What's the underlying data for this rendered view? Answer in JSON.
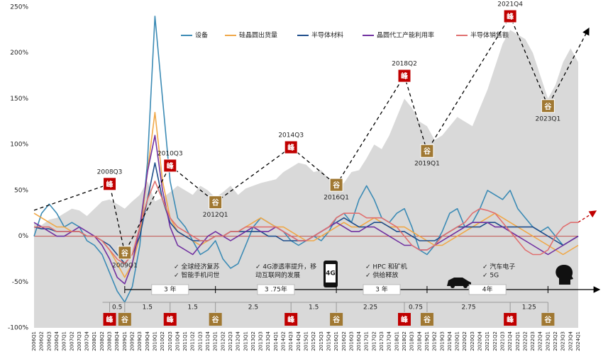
{
  "chart_data": {
    "type": "line",
    "categories": [
      "2006Q1",
      "2006Q2",
      "2006Q3",
      "2006Q4",
      "2007Q1",
      "2007Q2",
      "2007Q3",
      "2007Q4",
      "2008Q1",
      "2008Q2",
      "2008Q3",
      "2008Q4",
      "2009Q1",
      "2009Q2",
      "2009Q3",
      "2009Q4",
      "2010Q1",
      "2010Q2",
      "2010Q3",
      "2010Q4",
      "2011Q1",
      "2011Q2",
      "2011Q3",
      "2011Q4",
      "2012Q1",
      "2012Q2",
      "2012Q3",
      "2012Q4",
      "2013Q1",
      "2013Q2",
      "2013Q3",
      "2013Q4",
      "2014Q1",
      "2014Q2",
      "2014Q3",
      "2014Q4",
      "2015Q1",
      "2015Q2",
      "2015Q3",
      "2015Q4",
      "2016Q1",
      "2016Q2",
      "2016Q3",
      "2016Q4",
      "2017Q1",
      "2017Q2",
      "2017Q3",
      "2017Q4",
      "2018Q1",
      "2018Q2",
      "2018Q3",
      "2018Q4",
      "2019Q1",
      "2019Q2",
      "2019Q3",
      "2019Q4",
      "2020Q1",
      "2020Q2",
      "2020Q3",
      "2020Q4",
      "2021Q1",
      "2021Q2",
      "2021Q3",
      "2021Q4",
      "2022Q1",
      "2022Q2",
      "2022Q3",
      "2022Q4",
      "2023Q1",
      "2023Q2",
      "2023Q3",
      "2023Q4",
      "2024Q1"
    ],
    "area": {
      "color": "#d9d9d9",
      "values": [
        15,
        12,
        18,
        20,
        25,
        30,
        28,
        22,
        30,
        38,
        40,
        35,
        30,
        38,
        45,
        60,
        38,
        42,
        48,
        55,
        50,
        45,
        55,
        50,
        42,
        48,
        55,
        45,
        52,
        55,
        58,
        60,
        62,
        70,
        75,
        80,
        78,
        70,
        72,
        62,
        55,
        58,
        70,
        72,
        85,
        100,
        95,
        110,
        130,
        150,
        140,
        125,
        120,
        105,
        110,
        120,
        130,
        125,
        120,
        140,
        160,
        185,
        210,
        225,
        220,
        215,
        200,
        175,
        150,
        165,
        190,
        205,
        190
      ]
    },
    "series": [
      {
        "name": "设备",
        "color": "#3c8bb5",
        "values": [
          0,
          25,
          35,
          25,
          10,
          15,
          10,
          -5,
          -10,
          -20,
          -40,
          -60,
          -72,
          -55,
          -10,
          80,
          240,
          150,
          60,
          20,
          10,
          -5,
          -20,
          -15,
          -5,
          -25,
          -35,
          -30,
          -10,
          10,
          20,
          15,
          10,
          5,
          -5,
          -10,
          -5,
          0,
          -5,
          5,
          20,
          25,
          15,
          40,
          55,
          40,
          20,
          15,
          25,
          30,
          10,
          -15,
          -20,
          -10,
          5,
          25,
          30,
          10,
          15,
          30,
          50,
          45,
          40,
          50,
          30,
          20,
          10,
          5,
          10,
          0,
          -10,
          -5,
          0
        ]
      },
      {
        "name": "硅晶圆出货量",
        "color": "#f0a848",
        "values": [
          25,
          20,
          15,
          10,
          10,
          5,
          5,
          0,
          0,
          -5,
          -15,
          -30,
          -45,
          -30,
          0,
          70,
          135,
          60,
          20,
          5,
          0,
          -5,
          -10,
          -5,
          0,
          0,
          5,
          5,
          10,
          15,
          20,
          15,
          10,
          10,
          5,
          0,
          -5,
          -5,
          0,
          5,
          10,
          15,
          10,
          10,
          15,
          20,
          15,
          10,
          10,
          10,
          5,
          0,
          -5,
          -10,
          -10,
          -5,
          0,
          5,
          10,
          15,
          20,
          25,
          20,
          15,
          10,
          5,
          0,
          -5,
          -10,
          -15,
          -20,
          -15,
          -10
        ]
      },
      {
        "name": "半导体材料",
        "color": "#1f4e8c",
        "values": [
          10,
          8,
          8,
          5,
          5,
          5,
          5,
          0,
          0,
          -5,
          -10,
          -20,
          -30,
          -20,
          0,
          40,
          80,
          40,
          15,
          5,
          0,
          -5,
          -5,
          -5,
          0,
          0,
          5,
          5,
          5,
          5,
          5,
          0,
          0,
          -5,
          -5,
          -5,
          -5,
          0,
          5,
          10,
          15,
          20,
          15,
          10,
          10,
          15,
          15,
          10,
          5,
          5,
          0,
          -5,
          -5,
          -5,
          0,
          5,
          10,
          10,
          10,
          10,
          15,
          15,
          10,
          10,
          10,
          10,
          10,
          5,
          0,
          -5,
          -10,
          -5,
          0
        ]
      },
      {
        "name": "晶圆代工产能利用率",
        "color": "#7030a0",
        "values": [
          15,
          10,
          5,
          0,
          0,
          5,
          10,
          5,
          0,
          -10,
          -25,
          -45,
          -52,
          -30,
          10,
          70,
          110,
          50,
          10,
          -10,
          -15,
          -20,
          -10,
          0,
          5,
          0,
          -5,
          0,
          5,
          10,
          5,
          5,
          10,
          5,
          0,
          -5,
          -5,
          0,
          5,
          10,
          15,
          10,
          5,
          5,
          10,
          10,
          5,
          0,
          -5,
          -10,
          -10,
          -15,
          -15,
          -10,
          -5,
          0,
          5,
          10,
          15,
          15,
          15,
          10,
          10,
          5,
          0,
          -5,
          -10,
          -15,
          -20,
          -15,
          -10,
          -5,
          0
        ]
      },
      {
        "name": "半导体销售额",
        "color": "#e07070",
        "values": [
          10,
          10,
          10,
          5,
          5,
          5,
          5,
          0,
          0,
          -5,
          -15,
          -25,
          -30,
          -20,
          10,
          40,
          60,
          40,
          20,
          10,
          5,
          0,
          -5,
          -5,
          0,
          0,
          5,
          5,
          10,
          10,
          10,
          10,
          10,
          5,
          0,
          -5,
          -5,
          0,
          5,
          10,
          20,
          25,
          25,
          25,
          20,
          20,
          20,
          15,
          10,
          0,
          -10,
          -15,
          -15,
          -10,
          0,
          5,
          10,
          15,
          25,
          30,
          28,
          25,
          15,
          5,
          -5,
          -15,
          -20,
          -20,
          -15,
          0,
          10,
          15,
          15
        ]
      }
    ],
    "ylim": [
      -100,
      250
    ],
    "yticks": [
      {
        "value": -100,
        "label": "-100%"
      },
      {
        "value": -50,
        "label": "-50%"
      },
      {
        "value": 0,
        "label": "0%"
      },
      {
        "value": 50,
        "label": "50%"
      },
      {
        "value": 100,
        "label": "100%"
      },
      {
        "value": 150,
        "label": "150%"
      },
      {
        "value": 200,
        "label": "200%"
      },
      {
        "value": 250,
        "label": "250%"
      }
    ],
    "zero_line_color": "#c0504d",
    "legend": "top",
    "markers": [
      {
        "category": "2008Q3",
        "kind": "峰",
        "color": "#c00000",
        "y": 57
      },
      {
        "category": "2009Q1",
        "kind": "谷",
        "color": "#a07832",
        "y": -18
      },
      {
        "category": "2010Q3",
        "kind": "峰",
        "color": "#c00000",
        "y": 77
      },
      {
        "category": "2012Q1",
        "kind": "谷",
        "color": "#a07832",
        "y": 37
      },
      {
        "category": "2014Q3",
        "kind": "峰",
        "color": "#c00000",
        "y": 97
      },
      {
        "category": "2016Q1",
        "kind": "谷",
        "color": "#a07832",
        "y": 56
      },
      {
        "category": "2018Q2",
        "kind": "峰",
        "color": "#c00000",
        "y": 175
      },
      {
        "category": "2019Q1",
        "kind": "谷",
        "color": "#a07832",
        "y": 93
      },
      {
        "category": "2021Q4",
        "kind": "峰",
        "color": "#c00000",
        "y": 240
      },
      {
        "category": "2023Q1",
        "kind": "谷",
        "color": "#a07832",
        "y": 142
      }
    ],
    "durations": [
      0.5,
      1.5,
      1.5,
      2.5,
      1.5,
      2.25,
      0.75,
      2.75,
      1.25
    ],
    "cycles": [
      "3 年",
      "3 .75年",
      "3 年",
      "4年"
    ],
    "annotations": [
      [
        "✓ 全球经济复苏",
        "✓ 智能手机问世"
      ],
      [
        "✓ 4G渗透率提升，移",
        "动互联网的发展"
      ],
      [
        "✓ HPC 和矿机",
        "✓ 供给释放"
      ],
      [
        "✓ 汽车电子",
        "✓ 5G"
      ]
    ],
    "icon_label": "4G"
  }
}
